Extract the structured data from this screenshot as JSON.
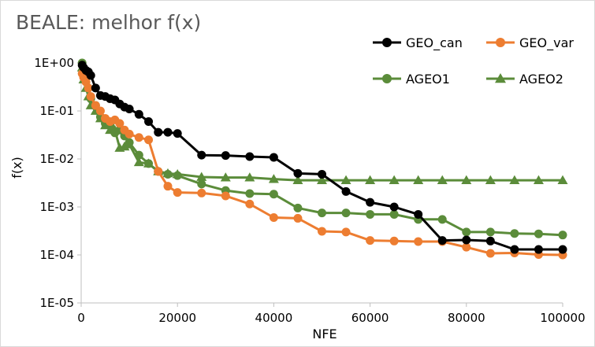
{
  "chart_data": {
    "type": "line",
    "title": "BEALE: melhor f(x)",
    "xlabel": "NFE",
    "ylabel": "f(x)",
    "xlim": [
      0,
      100000
    ],
    "ylim": [
      1e-05,
      1
    ],
    "yscale": "log",
    "grid": false,
    "legend_position": "top-right",
    "xticks": [
      0,
      20000,
      40000,
      60000,
      80000,
      100000
    ],
    "xtick_labels": [
      "0",
      "20000",
      "40000",
      "60000",
      "80000",
      "100000"
    ],
    "yticks": [
      1,
      0.1,
      0.01,
      0.001,
      0.0001,
      1e-05
    ],
    "ytick_labels": [
      "1E+00",
      "1E-01",
      "1E-02",
      "1E-03",
      "1E-04",
      "1E-05"
    ],
    "series": [
      {
        "name": "GEO_can",
        "color": "#000000",
        "marker": "circle",
        "x": [
          200,
          500,
          1000,
          1500,
          2000,
          3000,
          4000,
          5000,
          6000,
          7000,
          8000,
          9000,
          10000,
          12000,
          14000,
          16000,
          18000,
          20000,
          25000,
          30000,
          35000,
          40000,
          45000,
          50000,
          55000,
          60000,
          65000,
          70000,
          75000,
          80000,
          85000,
          90000,
          95000,
          100000
        ],
        "y": [
          0.9,
          0.8,
          0.7,
          0.65,
          0.55,
          0.3,
          0.21,
          0.2,
          0.18,
          0.17,
          0.14,
          0.12,
          0.11,
          0.085,
          0.06,
          0.036,
          0.036,
          0.034,
          0.012,
          0.0118,
          0.0112,
          0.0108,
          0.005,
          0.0048,
          0.0021,
          0.00125,
          0.001,
          0.0007,
          0.0002,
          0.000205,
          0.000195,
          0.00013,
          0.00013,
          0.00013
        ]
      },
      {
        "name": "GEO_var",
        "color": "#ed7d31",
        "marker": "circle",
        "x": [
          200,
          500,
          1000,
          1500,
          2000,
          3000,
          4000,
          5000,
          6000,
          7000,
          8000,
          9000,
          10000,
          12000,
          14000,
          16000,
          18000,
          20000,
          25000,
          30000,
          35000,
          40000,
          45000,
          50000,
          55000,
          60000,
          65000,
          70000,
          75000,
          80000,
          85000,
          90000,
          95000,
          100000
        ],
        "y": [
          0.6,
          0.5,
          0.4,
          0.3,
          0.2,
          0.13,
          0.1,
          0.07,
          0.06,
          0.065,
          0.055,
          0.04,
          0.033,
          0.028,
          0.025,
          0.0055,
          0.0027,
          0.002,
          0.00195,
          0.0017,
          0.00115,
          0.0006,
          0.00058,
          0.00031,
          0.0003,
          0.0002,
          0.000195,
          0.00019,
          0.00019,
          0.000145,
          0.000108,
          0.00011,
          0.000102,
          0.0001
        ]
      },
      {
        "name": "AGEO1",
        "color": "#5b8c3a",
        "marker": "circle",
        "x": [
          200,
          500,
          1000,
          1500,
          2000,
          3000,
          4000,
          5000,
          6000,
          7000,
          8000,
          9000,
          10000,
          12000,
          14000,
          16000,
          18000,
          20000,
          25000,
          30000,
          35000,
          40000,
          45000,
          50000,
          55000,
          60000,
          65000,
          70000,
          75000,
          80000,
          85000,
          90000,
          95000,
          100000
        ],
        "y": [
          1.0,
          0.7,
          0.5,
          0.3,
          0.18,
          0.13,
          0.075,
          0.055,
          0.05,
          0.035,
          0.04,
          0.03,
          0.022,
          0.012,
          0.008,
          0.0055,
          0.0048,
          0.0045,
          0.003,
          0.0022,
          0.0019,
          0.00185,
          0.00095,
          0.00075,
          0.00075,
          0.0007,
          0.0007,
          0.00055,
          0.00055,
          0.0003,
          0.0003,
          0.00028,
          0.000275,
          0.00026
        ]
      },
      {
        "name": "AGEO2",
        "color": "#5b8c3a",
        "marker": "triangle",
        "x": [
          200,
          500,
          1000,
          1500,
          2000,
          3000,
          4000,
          5000,
          6000,
          7000,
          8000,
          9000,
          10000,
          12000,
          14000,
          16000,
          18000,
          20000,
          25000,
          30000,
          35000,
          40000,
          45000,
          50000,
          55000,
          60000,
          65000,
          70000,
          75000,
          80000,
          85000,
          90000,
          95000,
          100000
        ],
        "y": [
          0.8,
          0.45,
          0.3,
          0.2,
          0.13,
          0.1,
          0.07,
          0.05,
          0.04,
          0.04,
          0.017,
          0.018,
          0.02,
          0.0085,
          0.008,
          0.0055,
          0.005,
          0.0048,
          0.0042,
          0.0041,
          0.0041,
          0.0038,
          0.0036,
          0.0036,
          0.0036,
          0.0036,
          0.0036,
          0.0036,
          0.0036,
          0.0036,
          0.0036,
          0.0036,
          0.0036,
          0.0036
        ]
      }
    ]
  }
}
